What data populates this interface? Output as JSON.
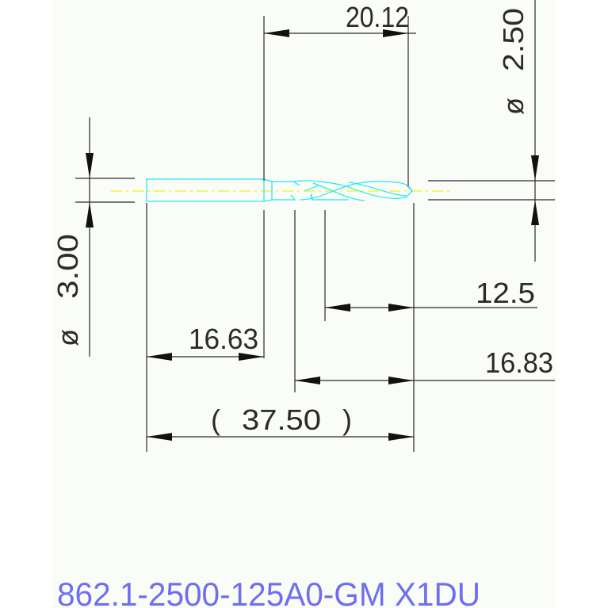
{
  "drawing": {
    "dimensions": {
      "cutting_length": "20.12",
      "tip_diameter": "2.50",
      "shank_diameter": "3.00",
      "diameter_symbol": "ø",
      "flute_length_a": "12.5",
      "shank_length": "16.63",
      "flute_length_b": "16.83",
      "overall_length": "37.50",
      "paren_open": "(",
      "paren_close": ")"
    },
    "part_code": "862.1-2500-125A0-GM X1DU",
    "colors": {
      "background": "#fafcf8",
      "dimension": "#2a2a2a",
      "drill_outline": "#22e6f0",
      "center_line": "#f0f020",
      "part_code": "#6e6ef0"
    }
  }
}
